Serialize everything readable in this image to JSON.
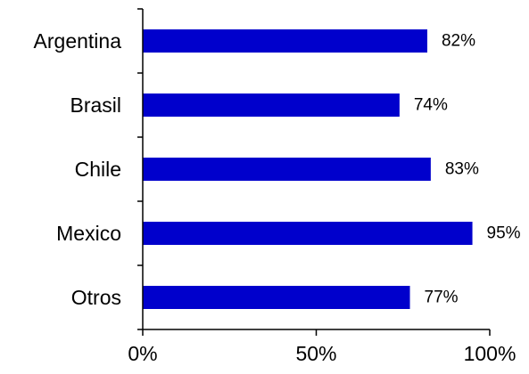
{
  "chart_data": {
    "type": "bar",
    "orientation": "horizontal",
    "categories": [
      "Argentina",
      "Brasil",
      "Chile",
      "Mexico",
      "Otros"
    ],
    "values": [
      82,
      74,
      83,
      95,
      77
    ],
    "value_labels": [
      "82%",
      "74%",
      "83%",
      "95%",
      "77%"
    ],
    "xlim": [
      0,
      100
    ],
    "x_ticks": [
      0,
      50,
      100
    ],
    "x_tick_labels": [
      "0%",
      "50%",
      "100%"
    ],
    "title": "",
    "xlabel": "",
    "ylabel": "",
    "grid": false,
    "legend": "none",
    "bar_color": "#0000CC",
    "axis_color": "#000000"
  }
}
